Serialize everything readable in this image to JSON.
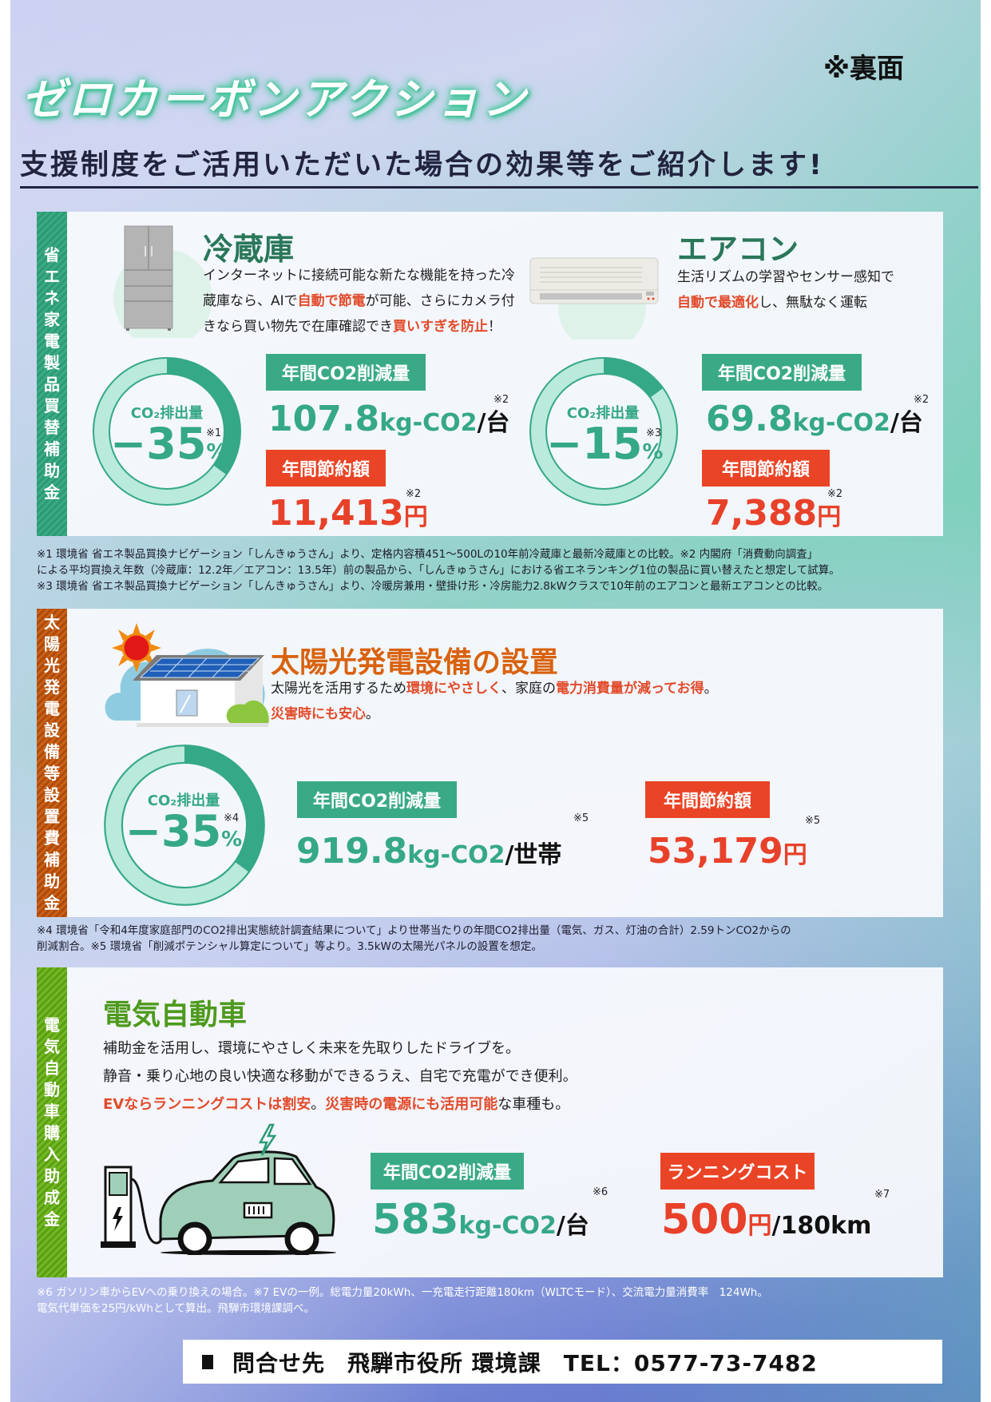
{
  "header": {
    "title": "ゼロカーボンアクション",
    "back_side": "※裏面",
    "subtitle": "支援制度をご活用いただいた場合の効果等をご紹介します!"
  },
  "colors": {
    "green": "#35a887",
    "dark_green": "#2a775a",
    "red": "#e8412a",
    "orange": "#d9620e",
    "lime": "#4f9a1e"
  },
  "section_appliance": {
    "side_label": [
      "省",
      "エ",
      "ネ",
      "家",
      "電",
      "製",
      "品",
      "買",
      "替",
      "補",
      "助",
      "金"
    ],
    "fridge": {
      "icon": "refrigerator-icon",
      "title": "冷蔵庫",
      "desc_lines": [
        [
          {
            "t": "インターネットに接続可能な新たな機能を持った冷",
            "em": false
          }
        ],
        [
          {
            "t": "蔵庫なら、AIで",
            "em": false
          },
          {
            "t": "自動で節電",
            "em": true
          },
          {
            "t": "が可能、さらにカメラ付",
            "em": false
          }
        ],
        [
          {
            "t": "きなら買い物先で在庫確認でき",
            "em": false
          },
          {
            "t": "買いすぎを防止",
            "em": true
          },
          {
            "t": "！",
            "em": false
          }
        ]
      ],
      "donut": {
        "label": "CO₂排出量",
        "value": "−35",
        "unit": "%",
        "note": "※1",
        "percent": 35
      },
      "co2_badge": "年間CO2削減量",
      "co2_value": "107.8",
      "co2_unit": "kg-CO2",
      "co2_per": "/台",
      "co2_note": "※2",
      "save_badge": "年間節約額",
      "save_value": "11,413",
      "save_unit": "円",
      "save_note": "※2"
    },
    "aircon": {
      "icon": "air-conditioner-icon",
      "title": "エアコン",
      "desc_lines": [
        [
          {
            "t": "生活リズムの学習やセンサー感知で",
            "em": false
          }
        ],
        [
          {
            "t": "自動で最適化",
            "em": true
          },
          {
            "t": "し、無駄なく運転",
            "em": false
          }
        ]
      ],
      "donut": {
        "label": "CO₂排出量",
        "value": "−15",
        "unit": "%",
        "note": "※3",
        "percent": 15
      },
      "co2_badge": "年間CO2削減量",
      "co2_value": "69.8",
      "co2_unit": "kg-CO2",
      "co2_per": "/台",
      "co2_note": "※2",
      "save_badge": "年間節約額",
      "save_value": "7,388",
      "save_unit": "円",
      "save_note": "※2"
    },
    "footnotes": [
      "※1 環境省 省エネ製品買換ナビゲーション「しんきゅうさん」より、定格内容積451～500Lの10年前冷蔵庫と最新冷蔵庫との比較。※2 内閣府「消費動向調査」",
      "による平均買換え年数（冷蔵庫：12.2年／エアコン：13.5年）前の製品から、「しんきゅうさん」における省エネランキング1位の製品に買い替えたと想定して試算。",
      "※3 環境省 省エネ製品買換ナビゲーション「しんきゅうさん」より、冷暖房兼用・壁掛け形・冷房能力2.8kWクラスで10年前のエアコンと最新エアコンとの比較。"
    ]
  },
  "section_solar": {
    "side_label": [
      "太",
      "陽",
      "光",
      "発",
      "電",
      "設",
      "備",
      "等",
      "設",
      "置",
      "費",
      "補",
      "助",
      "金"
    ],
    "icon": "solar-house-icon",
    "title": "太陽光発電設備の設置",
    "desc_lines": [
      [
        {
          "t": "太陽光を活用するため",
          "em": false
        },
        {
          "t": "環境にやさしく",
          "em": true
        },
        {
          "t": "、家庭の",
          "em": false
        },
        {
          "t": "電力消費量が減ってお得",
          "em": true
        },
        {
          "t": "。",
          "em": false
        }
      ],
      [
        {
          "t": "災害時にも安心",
          "em": true
        },
        {
          "t": "。",
          "em": false
        }
      ]
    ],
    "donut": {
      "label": "CO₂排出量",
      "value": "−35",
      "unit": "%",
      "note": "※4",
      "percent": 35
    },
    "co2_badge": "年間CO2削減量",
    "co2_value": "919.8",
    "co2_unit": "kg-CO2",
    "co2_per": "/世帯",
    "co2_note": "※5",
    "save_badge": "年間節約額",
    "save_value": "53,179",
    "save_unit": "円",
    "save_note": "※5",
    "footnotes": [
      "※4 環境省「令和4年度家庭部門のCO2排出実態統計調査結果について」より世帯当たりの年間CO2排出量（電気、ガス、灯油の合計）2.59トンCO2からの",
      "削減割合。※5 環境省「削減ポテンシャル算定について」等より。3.5kWの太陽光パネルの設置を想定。"
    ]
  },
  "section_ev": {
    "side_label": [
      "電",
      "気",
      "自",
      "動",
      "車",
      "購",
      "入",
      "助",
      "成",
      "金"
    ],
    "icon": "electric-car-charging-icon",
    "title": "電気自動車",
    "desc_lines": [
      [
        {
          "t": "補助金を活用し、環境にやさしく未来を先取りしたドライブを。",
          "em": false
        }
      ],
      [
        {
          "t": "静音・乗り心地の良い快適な移動ができるうえ、自宅で充電ができ便利。",
          "em": false
        }
      ],
      [
        {
          "t": "EVならランニングコストは割安",
          "em": true
        },
        {
          "t": "。",
          "em": false
        },
        {
          "t": "災害時の電源にも活用可能",
          "em": true
        },
        {
          "t": "な車種も。",
          "em": false
        }
      ]
    ],
    "co2_badge": "年間CO2削減量",
    "co2_value": "583",
    "co2_unit": "kg-CO2",
    "co2_per": "/台",
    "co2_note": "※6",
    "cost_badge": "ランニングコスト",
    "cost_value": "500",
    "cost_unit": "円",
    "cost_per": "/180km",
    "cost_note": "※7",
    "footnotes": [
      "※6 ガソリン車からEVへの乗り換えの場合。※7 EVの一例。総電力量20kWh、一充電走行距離180km（WLTCモード）、交流電力量消費率　124Wh。",
      "電気代単価を25円/kWhとして算出。飛騨市環境課調べ。"
    ]
  },
  "contact": {
    "label": "問合せ先",
    "office": "飛騨市役所 環境課",
    "tel": "TEL：0577-73-7482"
  }
}
